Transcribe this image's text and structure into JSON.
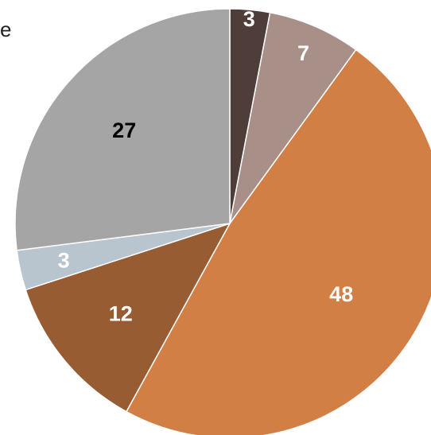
{
  "fragment_text": "e",
  "chart_data": {
    "type": "pie",
    "start_angle_deg": 0,
    "direction": "clockwise",
    "slices": [
      {
        "value": 3,
        "label": "3",
        "color": "#4f3d3a",
        "label_color": "#ffffff"
      },
      {
        "value": 7,
        "label": "7",
        "color": "#a89088",
        "label_color": "#ffffff"
      },
      {
        "value": 48,
        "label": "48",
        "color": "#d27f45",
        "label_color": "#ffffff"
      },
      {
        "value": 12,
        "label": "12",
        "color": "#975c32",
        "label_color": "#ffffff"
      },
      {
        "value": 3,
        "label": "3",
        "color": "#b9c5ce",
        "label_color": "#ffffff"
      },
      {
        "value": 27,
        "label": "27",
        "color": "#a5a5a5",
        "label_color": "#000000"
      }
    ]
  }
}
